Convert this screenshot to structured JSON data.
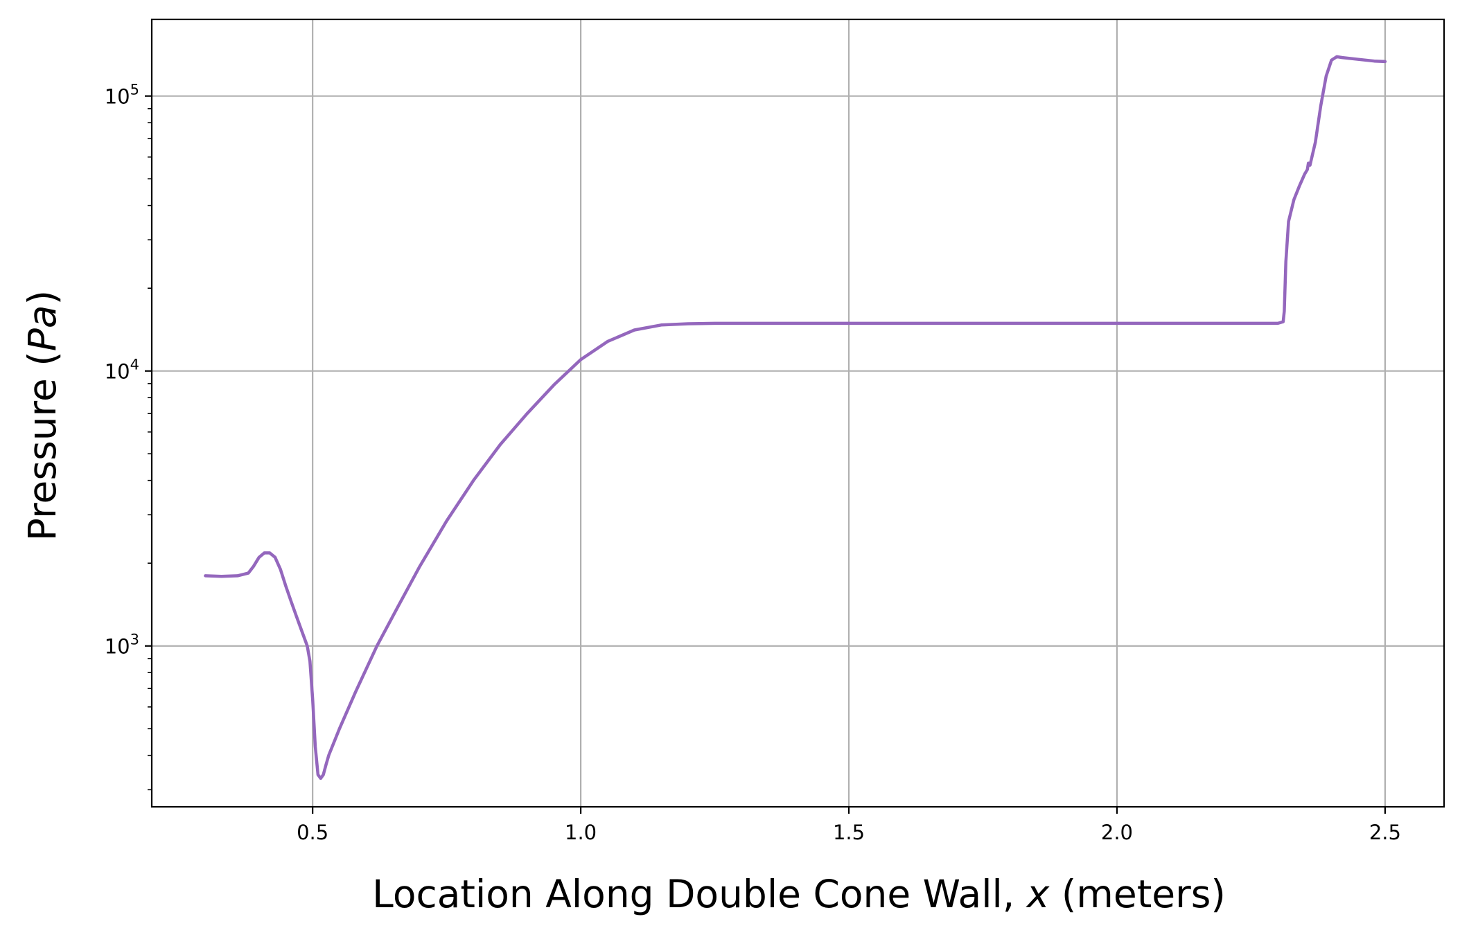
{
  "chart_data": {
    "type": "line",
    "xlabel_prefix": "Location Along Double Cone Wall, ",
    "xlabel_var": "x",
    "xlabel_suffix": " (meters)",
    "ylabel_prefix": "Pressure (",
    "ylabel_var": "Pa",
    "ylabel_suffix": ")",
    "xlim": [
      0.2,
      2.61
    ],
    "ylim": [
      260,
      190000
    ],
    "yscale": "log",
    "grid": true,
    "x_ticks": [
      {
        "value": 0.5,
        "label": "0.5"
      },
      {
        "value": 1.0,
        "label": "1.0"
      },
      {
        "value": 1.5,
        "label": "1.5"
      },
      {
        "value": 2.0,
        "label": "2.0"
      },
      {
        "value": 2.5,
        "label": "2.5"
      }
    ],
    "y_ticks": [
      {
        "value": 1000,
        "base": "10",
        "exp": "3"
      },
      {
        "value": 10000,
        "base": "10",
        "exp": "4"
      },
      {
        "value": 100000,
        "base": "10",
        "exp": "5"
      }
    ],
    "series": [
      {
        "color": "#9467bd",
        "x": [
          0.3,
          0.33,
          0.36,
          0.38,
          0.39,
          0.4,
          0.41,
          0.42,
          0.43,
          0.44,
          0.45,
          0.46,
          0.47,
          0.48,
          0.49,
          0.495,
          0.5,
          0.505,
          0.51,
          0.515,
          0.52,
          0.525,
          0.53,
          0.55,
          0.58,
          0.62,
          0.66,
          0.7,
          0.75,
          0.8,
          0.85,
          0.9,
          0.95,
          1.0,
          1.05,
          1.1,
          1.15,
          1.2,
          1.25,
          1.5,
          1.8,
          2.1,
          2.3,
          2.31,
          2.312,
          2.315,
          2.32,
          2.33,
          2.34,
          2.35,
          2.355,
          2.357,
          2.36,
          2.37,
          2.38,
          2.39,
          2.4,
          2.41,
          2.42,
          2.45,
          2.48,
          2.5
        ],
        "y": [
          1800,
          1790,
          1800,
          1840,
          1950,
          2100,
          2180,
          2180,
          2100,
          1900,
          1650,
          1450,
          1280,
          1130,
          1000,
          880,
          640,
          430,
          340,
          330,
          340,
          370,
          400,
          500,
          680,
          1000,
          1400,
          1950,
          2850,
          4000,
          5400,
          7000,
          8900,
          11000,
          12800,
          14100,
          14700,
          14850,
          14900,
          14900,
          14900,
          14900,
          14900,
          15100,
          16500,
          25000,
          35000,
          42000,
          47000,
          52000,
          54000,
          57000,
          56000,
          68000,
          92000,
          118000,
          135000,
          139000,
          138000,
          136000,
          134000,
          133500
        ]
      }
    ]
  }
}
